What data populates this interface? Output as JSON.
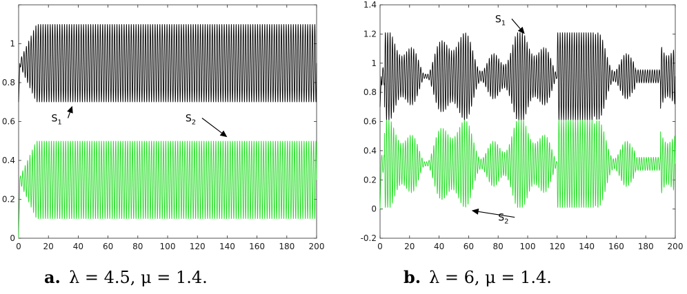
{
  "chart_data": [
    {
      "type": "line",
      "caption_label": "a.",
      "caption_text": "λ = 4.5, μ = 1.4.",
      "xlim": [
        0,
        200
      ],
      "ylim": [
        0,
        1.2
      ],
      "xticks": [
        0,
        20,
        40,
        60,
        80,
        100,
        120,
        140,
        160,
        180,
        200
      ],
      "yticks": [
        0,
        0.2,
        0.4,
        0.6,
        0.8,
        1,
        1.2
      ],
      "yticklabels": [
        "0",
        "0.2",
        "0.4",
        "0.6",
        "0.8",
        "1",
        ""
      ],
      "series": [
        {
          "name": "S1",
          "color": "#000000",
          "mode": "growth",
          "start": 0.7,
          "center": 0.9,
          "amplitude": 0.2,
          "period": 1.6,
          "rise": 12
        },
        {
          "name": "S2",
          "color": "#22dd22",
          "mode": "growth",
          "start": 0.0,
          "center": 0.3,
          "amplitude": 0.2,
          "period": 1.6,
          "rise": 12
        }
      ],
      "annotations": [
        {
          "label": "S",
          "sub": "1",
          "text_x": 22,
          "text_y": 0.6,
          "arrow_to": [
            36,
            0.68
          ]
        },
        {
          "label": "S",
          "sub": "2",
          "text_x": 112,
          "text_y": 0.6,
          "arrow_to": [
            140,
            0.52
          ]
        }
      ]
    },
    {
      "type": "line",
      "caption_label": "b.",
      "caption_text": "λ = 6, μ = 1.4.",
      "xlim": [
        0,
        200
      ],
      "ylim": [
        -0.2,
        1.4
      ],
      "xticks": [
        0,
        20,
        40,
        60,
        80,
        100,
        120,
        140,
        160,
        180,
        200
      ],
      "yticks": [
        -0.2,
        0,
        0.2,
        0.4,
        0.6,
        0.8,
        1,
        1.2,
        1.4
      ],
      "yticklabels": [
        "-0.2",
        "0",
        "0.2",
        "0.4",
        "0.6",
        "0.8",
        "1",
        "1.2",
        "1.4"
      ],
      "series": [
        {
          "name": "S1",
          "color": "#000000",
          "mode": "beat",
          "start": 0.7,
          "center": 0.91,
          "amplitude": 0.3,
          "period": 1.6
        },
        {
          "name": "S2",
          "color": "#22dd22",
          "mode": "beat",
          "start": 0.0,
          "center": 0.31,
          "amplitude": 0.3,
          "period": 1.6
        }
      ],
      "annotations": [
        {
          "label": "S",
          "sub": "1",
          "text_x": 78,
          "text_y": 1.28,
          "arrow_to": [
            98,
            1.2
          ]
        },
        {
          "label": "S",
          "sub": "2",
          "text_x": 80,
          "text_y": -0.08,
          "arrow_to": [
            62,
            -0.01
          ]
        }
      ]
    }
  ]
}
